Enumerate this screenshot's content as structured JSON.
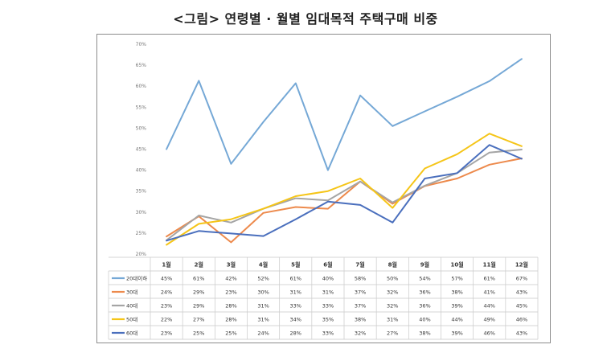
{
  "chart_data": {
    "type": "line",
    "title": "<그림> 연령별 · 월별 임대목적 주택구매 비중",
    "categories": [
      "1월",
      "2월",
      "3월",
      "4월",
      "5월",
      "6월",
      "7월",
      "8월",
      "9월",
      "10월",
      "11월",
      "12월"
    ],
    "yticks": [
      "20%",
      "25%",
      "30%",
      "35%",
      "40%",
      "45%",
      "50%",
      "55%",
      "60%",
      "65%",
      "70%"
    ],
    "ylim": [
      20,
      70
    ],
    "grid": false,
    "legend": "data-table",
    "series": [
      {
        "name": "20대이하",
        "color": "#75a8d6",
        "values": [
          45,
          61.3,
          41.5,
          51.5,
          60.7,
          40,
          57.8,
          50.5,
          54,
          57.5,
          61.2,
          66.5
        ],
        "labels": [
          "45%",
          "61%",
          "42%",
          "52%",
          "61%",
          "40%",
          "58%",
          "50%",
          "54%",
          "57%",
          "61%",
          "67%"
        ]
      },
      {
        "name": "30대",
        "color": "#ed8a4c",
        "values": [
          24.2,
          29,
          22.8,
          29.8,
          31.2,
          30.8,
          37.3,
          32,
          36.2,
          38,
          41.3,
          42.8
        ],
        "labels": [
          "24%",
          "29%",
          "23%",
          "30%",
          "31%",
          "31%",
          "37%",
          "32%",
          "36%",
          "38%",
          "41%",
          "43%"
        ]
      },
      {
        "name": "40대",
        "color": "#a5a5a5",
        "values": [
          23.3,
          29.2,
          27.5,
          30.8,
          33.3,
          32.8,
          37.3,
          32.3,
          36.3,
          39.3,
          44.2,
          44.9
        ],
        "labels": [
          "23%",
          "29%",
          "28%",
          "31%",
          "33%",
          "33%",
          "37%",
          "32%",
          "36%",
          "39%",
          "44%",
          "45%"
        ]
      },
      {
        "name": "50대",
        "color": "#f5c518",
        "values": [
          22.2,
          27.2,
          28.3,
          30.8,
          33.8,
          35,
          38,
          31,
          40.4,
          43.8,
          48.7,
          45.7
        ],
        "labels": [
          "22%",
          "27%",
          "28%",
          "31%",
          "34%",
          "35%",
          "38%",
          "31%",
          "40%",
          "44%",
          "49%",
          "46%"
        ]
      },
      {
        "name": "60대",
        "color": "#4a6fbd",
        "values": [
          23.2,
          25.5,
          24.9,
          24.3,
          28.3,
          32.5,
          31.7,
          27.5,
          38,
          39.3,
          46,
          42.7
        ],
        "labels": [
          "23%",
          "25%",
          "25%",
          "24%",
          "28%",
          "33%",
          "32%",
          "27%",
          "38%",
          "39%",
          "46%",
          "43%"
        ]
      }
    ]
  }
}
